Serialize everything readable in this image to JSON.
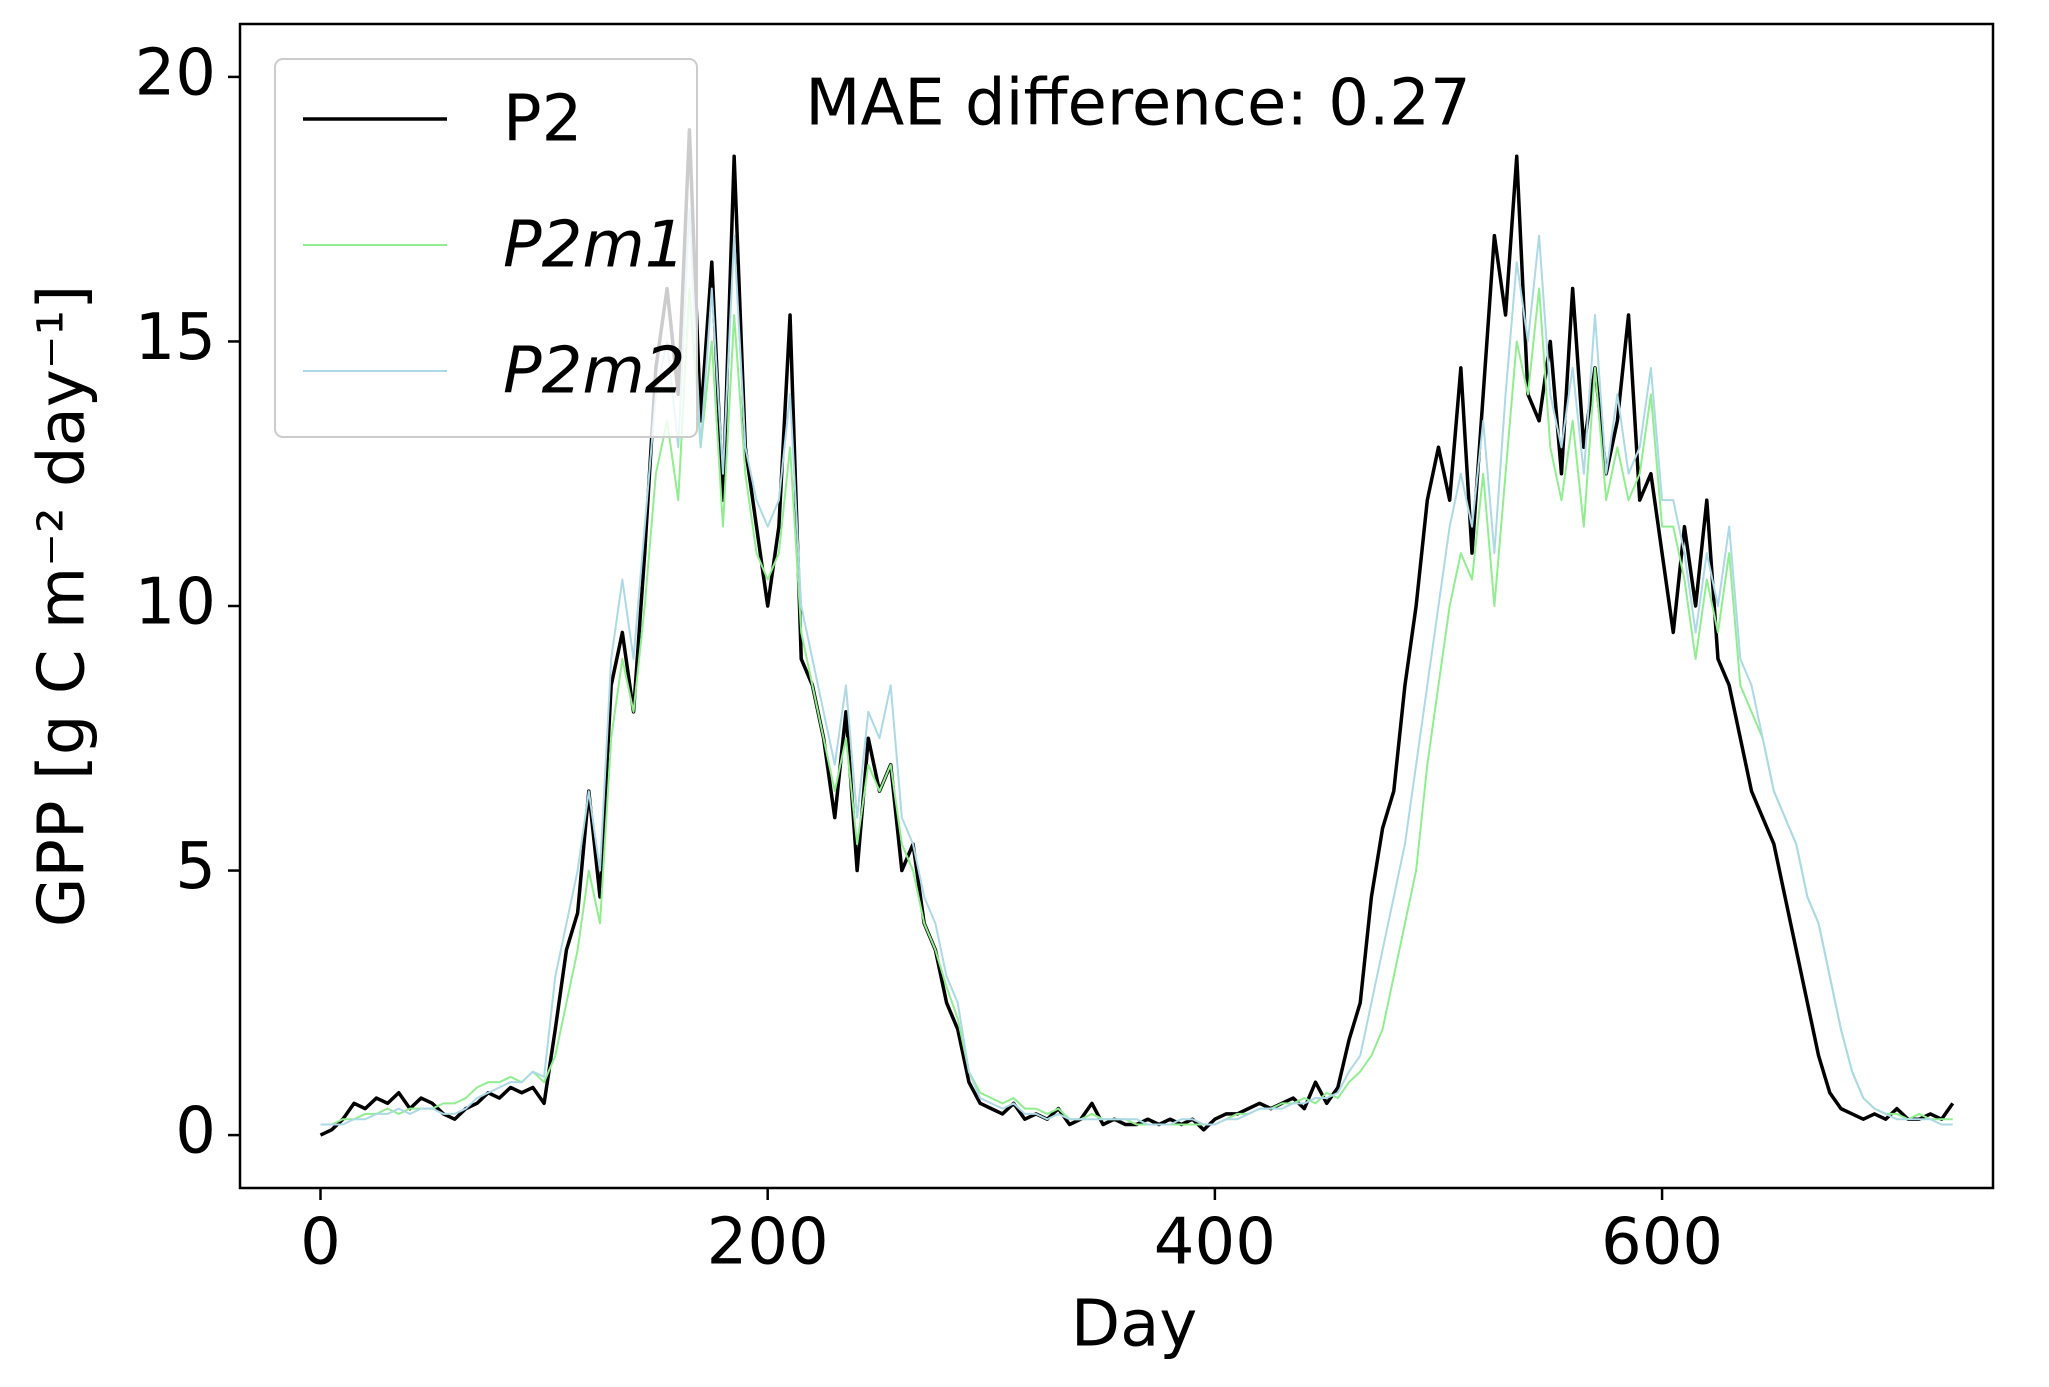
{
  "chart_data": {
    "type": "line",
    "annotation": "MAE difference: 0.27",
    "x_label": "Day",
    "y_label": "GPP [g C m⁻² day⁻¹]",
    "xlim": [
      -36,
      748
    ],
    "xticks": [
      0,
      200,
      400,
      600
    ],
    "ylim": [
      -1,
      21
    ],
    "yticks": [
      0,
      5,
      10,
      15,
      20
    ],
    "legend": "upper left",
    "x": [
      0,
      5,
      10,
      15,
      20,
      25,
      30,
      35,
      40,
      45,
      50,
      55,
      60,
      65,
      70,
      75,
      80,
      85,
      90,
      95,
      100,
      105,
      110,
      115,
      120,
      125,
      130,
      135,
      140,
      145,
      150,
      155,
      160,
      165,
      170,
      175,
      180,
      185,
      190,
      195,
      200,
      205,
      210,
      215,
      220,
      225,
      230,
      235,
      240,
      245,
      250,
      255,
      260,
      265,
      270,
      275,
      280,
      285,
      290,
      295,
      300,
      305,
      310,
      315,
      320,
      325,
      330,
      335,
      340,
      345,
      350,
      355,
      360,
      365,
      370,
      375,
      380,
      385,
      390,
      395,
      400,
      405,
      410,
      415,
      420,
      425,
      430,
      435,
      440,
      445,
      450,
      455,
      460,
      465,
      470,
      475,
      480,
      485,
      490,
      495,
      500,
      505,
      510,
      515,
      520,
      525,
      530,
      535,
      540,
      545,
      550,
      555,
      560,
      565,
      570,
      575,
      580,
      585,
      590,
      595,
      600,
      605,
      610,
      615,
      620,
      625,
      630,
      635,
      640,
      645,
      650,
      655,
      660,
      665,
      670,
      675,
      680,
      685,
      690,
      695,
      700,
      705,
      710,
      715,
      720,
      725,
      730
    ],
    "series": [
      {
        "name": "P2",
        "color": "#000000",
        "values": [
          0.0,
          0.1,
          0.3,
          0.6,
          0.5,
          0.7,
          0.6,
          0.8,
          0.5,
          0.7,
          0.6,
          0.4,
          0.3,
          0.5,
          0.6,
          0.8,
          0.7,
          0.9,
          0.8,
          0.9,
          0.6,
          2.0,
          3.5,
          4.2,
          6.5,
          4.5,
          8.5,
          9.5,
          8.0,
          11.0,
          14.5,
          16.0,
          14.0,
          19.0,
          13.5,
          16.5,
          12.0,
          18.5,
          13.0,
          11.5,
          10.0,
          11.5,
          15.5,
          9.0,
          8.5,
          7.5,
          6.0,
          8.0,
          5.0,
          7.5,
          6.5,
          7.0,
          5.0,
          5.5,
          4.0,
          3.5,
          2.5,
          2.0,
          1.0,
          0.6,
          0.5,
          0.4,
          0.6,
          0.3,
          0.4,
          0.3,
          0.5,
          0.2,
          0.3,
          0.6,
          0.2,
          0.3,
          0.2,
          0.2,
          0.3,
          0.2,
          0.3,
          0.2,
          0.3,
          0.1,
          0.3,
          0.4,
          0.4,
          0.5,
          0.6,
          0.5,
          0.6,
          0.7,
          0.5,
          1.0,
          0.6,
          0.9,
          1.8,
          2.5,
          4.5,
          5.8,
          6.5,
          8.5,
          10.0,
          12.0,
          13.0,
          12.0,
          14.5,
          11.0,
          14.0,
          17.0,
          15.5,
          18.5,
          14.0,
          13.5,
          15.0,
          12.5,
          16.0,
          13.0,
          14.5,
          12.5,
          13.5,
          15.5,
          12.0,
          12.5,
          11.0,
          9.5,
          11.5,
          10.0,
          12.0,
          9.0,
          8.5,
          7.5,
          6.5,
          6.0,
          5.5,
          4.5,
          3.5,
          2.5,
          1.5,
          0.8,
          0.5,
          0.4,
          0.3,
          0.4,
          0.3,
          0.5,
          0.3,
          0.3,
          0.4,
          0.3,
          0.6
        ]
      },
      {
        "name": "P2m1",
        "color": "#90ee90",
        "values": [
          0.2,
          0.2,
          0.3,
          0.3,
          0.4,
          0.4,
          0.5,
          0.4,
          0.5,
          0.5,
          0.5,
          0.6,
          0.6,
          0.7,
          0.9,
          1.0,
          1.0,
          1.1,
          1.0,
          1.2,
          1.0,
          1.5,
          2.5,
          3.5,
          5.0,
          4.0,
          7.5,
          9.0,
          8.0,
          10.0,
          12.5,
          13.5,
          12.0,
          16.0,
          13.0,
          15.0,
          11.5,
          15.5,
          12.5,
          11.0,
          10.5,
          11.0,
          13.0,
          9.5,
          8.5,
          7.5,
          6.5,
          7.5,
          5.5,
          7.0,
          6.5,
          7.0,
          5.5,
          5.0,
          4.0,
          3.5,
          2.8,
          2.2,
          1.2,
          0.8,
          0.7,
          0.6,
          0.7,
          0.5,
          0.5,
          0.4,
          0.5,
          0.3,
          0.3,
          0.4,
          0.3,
          0.3,
          0.3,
          0.2,
          0.2,
          0.2,
          0.2,
          0.2,
          0.2,
          0.2,
          0.2,
          0.3,
          0.4,
          0.4,
          0.5,
          0.5,
          0.6,
          0.6,
          0.7,
          0.6,
          0.8,
          0.7,
          1.0,
          1.2,
          1.5,
          2.0,
          3.0,
          4.0,
          5.0,
          7.0,
          8.5,
          10.0,
          11.0,
          10.5,
          12.5,
          10.0,
          12.5,
          15.0,
          14.0,
          16.0,
          13.0,
          12.0,
          13.5,
          11.5,
          14.5,
          12.0,
          13.0,
          12.0,
          12.5,
          14.0,
          11.5,
          11.5,
          10.5,
          9.0,
          10.5,
          9.5,
          11.0,
          8.5,
          8.0,
          7.5,
          6.5,
          6.0,
          5.5,
          4.5,
          4.0,
          3.0,
          2.0,
          1.2,
          0.7,
          0.5,
          0.4,
          0.4,
          0.3,
          0.4,
          0.3,
          0.3,
          0.3
        ]
      },
      {
        "name": "P2m2",
        "color": "#add8e6",
        "values": [
          0.2,
          0.2,
          0.2,
          0.3,
          0.3,
          0.4,
          0.4,
          0.5,
          0.4,
          0.5,
          0.5,
          0.4,
          0.4,
          0.5,
          0.7,
          0.8,
          0.9,
          1.0,
          1.0,
          1.2,
          1.1,
          3.0,
          4.0,
          5.0,
          6.5,
          5.0,
          9.0,
          10.5,
          9.0,
          11.5,
          14.0,
          15.0,
          13.0,
          17.5,
          13.0,
          16.0,
          12.5,
          17.0,
          13.0,
          12.0,
          11.5,
          12.0,
          14.0,
          10.0,
          9.0,
          8.0,
          7.0,
          8.5,
          6.0,
          8.0,
          7.5,
          8.5,
          6.0,
          5.5,
          4.5,
          4.0,
          3.0,
          2.5,
          1.2,
          0.7,
          0.6,
          0.5,
          0.6,
          0.4,
          0.4,
          0.3,
          0.4,
          0.3,
          0.3,
          0.3,
          0.3,
          0.3,
          0.3,
          0.3,
          0.2,
          0.2,
          0.2,
          0.3,
          0.3,
          0.2,
          0.2,
          0.3,
          0.3,
          0.4,
          0.5,
          0.5,
          0.5,
          0.6,
          0.6,
          0.7,
          0.7,
          0.8,
          1.2,
          1.5,
          2.5,
          3.5,
          4.5,
          5.5,
          7.0,
          8.5,
          10.0,
          11.5,
          12.5,
          11.5,
          13.5,
          11.0,
          14.0,
          16.5,
          15.0,
          17.0,
          14.0,
          13.0,
          14.5,
          12.5,
          15.5,
          12.5,
          14.0,
          12.5,
          13.0,
          14.5,
          12.0,
          12.0,
          11.0,
          9.5,
          11.0,
          10.0,
          11.5,
          9.0,
          8.5,
          7.5,
          6.5,
          6.0,
          5.5,
          4.5,
          4.0,
          3.0,
          2.0,
          1.2,
          0.7,
          0.5,
          0.4,
          0.3,
          0.3,
          0.3,
          0.3,
          0.2,
          0.2
        ]
      }
    ]
  }
}
